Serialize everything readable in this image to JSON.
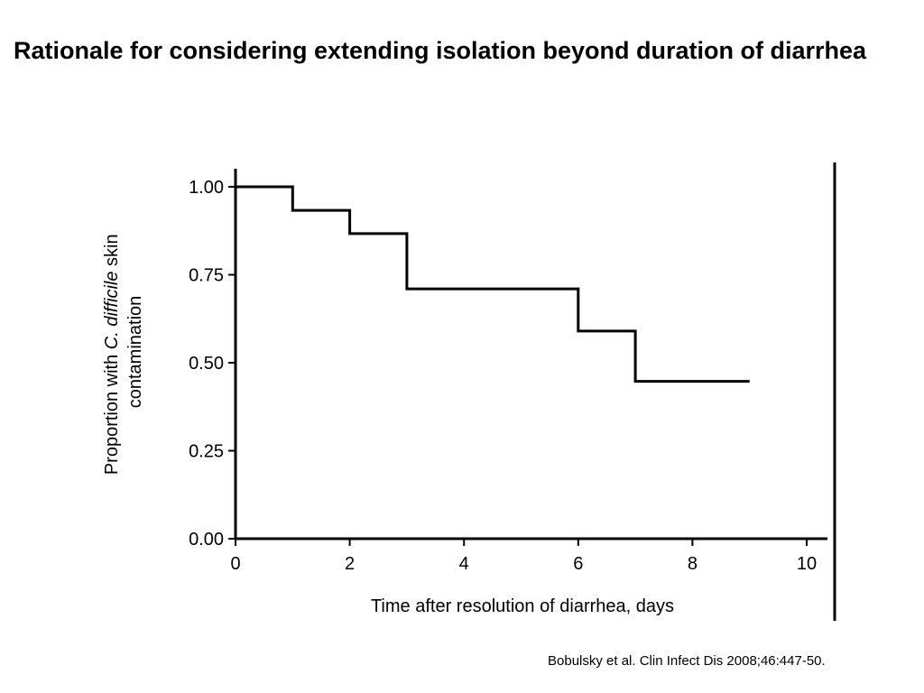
{
  "slide": {
    "title": "Rationale for considering extending isolation beyond duration of diarrhea",
    "citation": "Bobulsky et al. Clin Infect Dis 2008;46:447-50."
  },
  "chart_data": {
    "type": "line",
    "step": true,
    "title": "",
    "xlabel": "Time after resolution of diarrhea, days",
    "ylabel": {
      "line1_prefix": "Proportion with ",
      "line1_italic": "C. difficile",
      "line1_suffix": " skin",
      "line2": "contamination"
    },
    "xlim": [
      0,
      10
    ],
    "ylim": [
      0,
      1
    ],
    "xticks": [
      {
        "value": 0,
        "label": "0"
      },
      {
        "value": 2,
        "label": "2"
      },
      {
        "value": 4,
        "label": "4"
      },
      {
        "value": 6,
        "label": "6"
      },
      {
        "value": 8,
        "label": "8"
      },
      {
        "value": 10,
        "label": "10"
      }
    ],
    "yticks": [
      {
        "value": 0,
        "label": "0.00"
      },
      {
        "value": 0.25,
        "label": "0.25"
      },
      {
        "value": 0.5,
        "label": "0.50"
      },
      {
        "value": 0.75,
        "label": "0.75"
      },
      {
        "value": 1,
        "label": "1.00"
      }
    ],
    "grid": false,
    "series": [
      {
        "x": [
          0,
          1,
          2,
          3,
          6,
          7,
          9
        ],
        "y": [
          1.0,
          0.933,
          0.867,
          0.71,
          0.59,
          0.447,
          0.447
        ]
      }
    ],
    "line_color": "#000000"
  }
}
